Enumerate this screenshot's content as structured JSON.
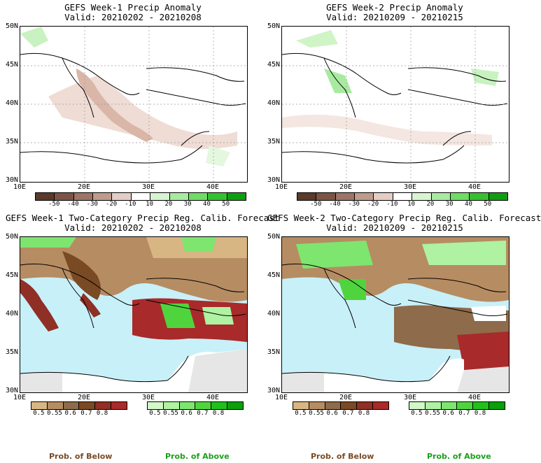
{
  "panels": [
    {
      "title": "GEFS Week-1 Precip Anomaly",
      "valid": "Valid: 20210202 - 20210208"
    },
    {
      "title": "GEFS Week-2 Precip Anomaly",
      "valid": "Valid: 20210209 - 20210215"
    },
    {
      "title": "GEFS Week-1 Two-Category Precip Reg. Calib. Forecast",
      "valid": "Valid: 20210202 - 20210208"
    },
    {
      "title": "GEFS Week-2 Two-Category Precip Reg. Calib. Forecast",
      "valid": "Valid: 20210209 - 20210215"
    }
  ],
  "lat_labels": [
    "50N",
    "45N",
    "40N",
    "35N",
    "30N"
  ],
  "lon_labels": [
    "10E",
    "20E",
    "30E",
    "40E"
  ],
  "anomaly_colorbar": {
    "ticks": [
      "-50",
      "-40",
      "-30",
      "-20",
      "-10",
      "10",
      "20",
      "30",
      "40",
      "50"
    ],
    "colors": [
      "#5c3a2a",
      "#7d5444",
      "#9d7466",
      "#bf9b8c",
      "#e4cdc4",
      "#ffffff",
      "#d6f5d0",
      "#a8eba0",
      "#6fdc64",
      "#36c12e",
      "#0f9e0f"
    ]
  },
  "below_colorbar": {
    "ticks": [
      "0.5",
      "0.55",
      "0.6",
      "0.7",
      "0.8"
    ],
    "colors": [
      "#d8b683",
      "#b68c62",
      "#8d6b4b",
      "#7a4a24",
      "#8f2f25",
      "#a82a2a"
    ]
  },
  "above_colorbar": {
    "ticks": [
      "0.5",
      "0.55",
      "0.6",
      "0.7",
      "0.8"
    ],
    "colors": [
      "#d2f7c8",
      "#aef2a2",
      "#7ee56f",
      "#4fd43e",
      "#22c01a",
      "#0b9f0b"
    ]
  },
  "footer": {
    "below": "Prob. of Below",
    "above": "Prob. of Above"
  },
  "colors": {
    "sea": "#c8f0f8",
    "land_gray": "#e6e6e6",
    "below_label": "#7a4a24",
    "above_label": "#1aa01a"
  }
}
